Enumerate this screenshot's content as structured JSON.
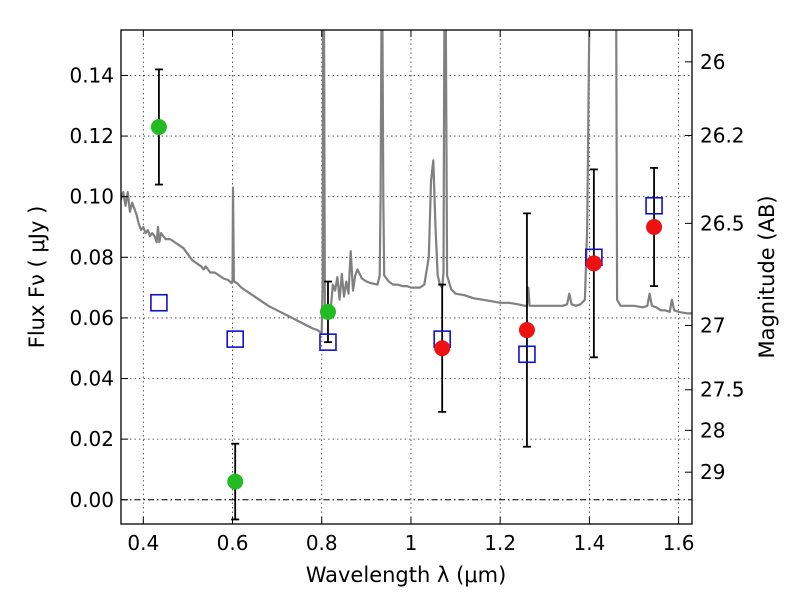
{
  "chart_data": {
    "type": "scatter",
    "xlabel": "Wavelength  λ (μm)",
    "ylabel": "Flux  Fν  ( μJy )",
    "ylabel_right": "Magnitude (AB)",
    "xlim": [
      0.35,
      1.63
    ],
    "ylim": [
      -0.008,
      0.155
    ],
    "grid": true,
    "x_ticks": [
      0.4,
      0.6,
      0.8,
      1.0,
      1.2,
      1.4,
      1.6
    ],
    "x_tick_labels": [
      "0.4",
      "0.6",
      "0.8",
      "1",
      "1.2",
      "1.4",
      "1.6"
    ],
    "y_ticks": [
      0.0,
      0.02,
      0.04,
      0.06,
      0.08,
      0.1,
      0.12,
      0.14
    ],
    "y_tick_labels": [
      "0.00",
      "0.02",
      "0.04",
      "0.06",
      "0.08",
      "0.10",
      "0.12",
      "0.14"
    ],
    "right_ticks": [
      {
        "label": "26",
        "flux": 0.1445
      },
      {
        "label": "26.2",
        "flux": 0.1202
      },
      {
        "label": "26.5",
        "flux": 0.0912
      },
      {
        "label": "27",
        "flux": 0.0575
      },
      {
        "label": "27.5",
        "flux": 0.0363
      },
      {
        "label": "28",
        "flux": 0.0229
      },
      {
        "label": "29",
        "flux": 0.0091
      }
    ],
    "colors": {
      "green": "#22bb22",
      "red": "#ee1111",
      "blue": "#1111cc",
      "model": "#808080",
      "errorbar": "#000000",
      "grid": "#333333"
    },
    "series": [
      {
        "marker": "circle",
        "color": "green",
        "points": [
          {
            "x": 0.435,
            "y": 0.123,
            "yerr": 0.019
          },
          {
            "x": 0.606,
            "y": 0.006,
            "yerr": 0.0125
          },
          {
            "x": 0.814,
            "y": 0.062,
            "yerr": 0.01
          }
        ]
      },
      {
        "marker": "circle",
        "color": "red",
        "points": [
          {
            "x": 1.07,
            "y": 0.05,
            "yerr": 0.021
          },
          {
            "x": 1.26,
            "y": 0.056,
            "yerr": 0.0385
          },
          {
            "x": 1.41,
            "y": 0.078,
            "yerr": 0.031
          },
          {
            "x": 1.545,
            "y": 0.09,
            "yerr": 0.0195
          }
        ]
      },
      {
        "marker": "open-square",
        "color": "blue",
        "points": [
          {
            "x": 0.435,
            "y": 0.065
          },
          {
            "x": 0.606,
            "y": 0.053
          },
          {
            "x": 0.814,
            "y": 0.052
          },
          {
            "x": 1.07,
            "y": 0.053
          },
          {
            "x": 1.26,
            "y": 0.048
          },
          {
            "x": 1.41,
            "y": 0.08
          },
          {
            "x": 1.545,
            "y": 0.097
          }
        ]
      }
    ],
    "model_spectrum": {
      "color": "model",
      "points": [
        [
          0.35,
          0.099
        ],
        [
          0.355,
          0.1015
        ],
        [
          0.36,
          0.097
        ],
        [
          0.365,
          0.1015
        ],
        [
          0.37,
          0.095
        ],
        [
          0.375,
          0.098
        ],
        [
          0.38,
          0.096
        ],
        [
          0.385,
          0.094
        ],
        [
          0.39,
          0.091
        ],
        [
          0.395,
          0.089
        ],
        [
          0.4,
          0.09
        ],
        [
          0.405,
          0.088
        ],
        [
          0.41,
          0.089
        ],
        [
          0.415,
          0.087
        ],
        [
          0.42,
          0.088
        ],
        [
          0.425,
          0.087
        ],
        [
          0.43,
          0.085
        ],
        [
          0.433,
          0.09
        ],
        [
          0.436,
          0.085
        ],
        [
          0.44,
          0.088
        ],
        [
          0.45,
          0.086
        ],
        [
          0.46,
          0.086
        ],
        [
          0.47,
          0.085
        ],
        [
          0.48,
          0.084
        ],
        [
          0.49,
          0.083
        ],
        [
          0.5,
          0.081
        ],
        [
          0.51,
          0.079
        ],
        [
          0.52,
          0.078
        ],
        [
          0.53,
          0.077
        ],
        [
          0.535,
          0.076
        ],
        [
          0.54,
          0.077
        ],
        [
          0.545,
          0.076
        ],
        [
          0.55,
          0.075
        ],
        [
          0.56,
          0.075
        ],
        [
          0.57,
          0.074
        ],
        [
          0.58,
          0.073
        ],
        [
          0.59,
          0.0725
        ],
        [
          0.598,
          0.0715
        ],
        [
          0.6,
          0.072
        ],
        [
          0.601,
          0.103
        ],
        [
          0.603,
          0.072
        ],
        [
          0.61,
          0.0715
        ],
        [
          0.62,
          0.07
        ],
        [
          0.64,
          0.068
        ],
        [
          0.66,
          0.066
        ],
        [
          0.68,
          0.064
        ],
        [
          0.7,
          0.0625
        ],
        [
          0.72,
          0.061
        ],
        [
          0.74,
          0.0595
        ],
        [
          0.76,
          0.058
        ],
        [
          0.78,
          0.0565
        ],
        [
          0.79,
          0.056
        ],
        [
          0.8,
          0.055
        ],
        [
          0.802,
          0.07
        ],
        [
          0.803,
          0.16
        ],
        [
          0.805,
          0.16
        ],
        [
          0.807,
          0.063
        ],
        [
          0.81,
          0.06
        ],
        [
          0.815,
          0.0625
        ],
        [
          0.82,
          0.063
        ],
        [
          0.825,
          0.071
        ],
        [
          0.83,
          0.069
        ],
        [
          0.835,
          0.0735
        ],
        [
          0.84,
          0.066
        ],
        [
          0.845,
          0.0745
        ],
        [
          0.85,
          0.067
        ],
        [
          0.855,
          0.072
        ],
        [
          0.86,
          0.068
        ],
        [
          0.865,
          0.082
        ],
        [
          0.87,
          0.069
        ],
        [
          0.875,
          0.074
        ],
        [
          0.88,
          0.076
        ],
        [
          0.885,
          0.0745
        ],
        [
          0.89,
          0.073
        ],
        [
          0.9,
          0.072
        ],
        [
          0.91,
          0.0715
        ],
        [
          0.925,
          0.071
        ],
        [
          0.93,
          0.074
        ],
        [
          0.932,
          0.1
        ],
        [
          0.934,
          0.16
        ],
        [
          0.936,
          0.16
        ],
        [
          0.938,
          0.1
        ],
        [
          0.94,
          0.074
        ],
        [
          0.95,
          0.072
        ],
        [
          0.96,
          0.071
        ],
        [
          0.97,
          0.071
        ],
        [
          0.98,
          0.0705
        ],
        [
          0.99,
          0.0705
        ],
        [
          1.0,
          0.07
        ],
        [
          1.01,
          0.07
        ],
        [
          1.02,
          0.07
        ],
        [
          1.03,
          0.071
        ],
        [
          1.04,
          0.08
        ],
        [
          1.045,
          0.105
        ],
        [
          1.05,
          0.112
        ],
        [
          1.055,
          0.09
        ],
        [
          1.06,
          0.074
        ],
        [
          1.065,
          0.071
        ],
        [
          1.07,
          0.07
        ],
        [
          1.073,
          0.075
        ],
        [
          1.075,
          0.16
        ],
        [
          1.078,
          0.16
        ],
        [
          1.081,
          0.074
        ],
        [
          1.09,
          0.0695
        ],
        [
          1.1,
          0.068
        ],
        [
          1.12,
          0.0675
        ],
        [
          1.14,
          0.0665
        ],
        [
          1.16,
          0.066
        ],
        [
          1.18,
          0.0655
        ],
        [
          1.2,
          0.065
        ],
        [
          1.22,
          0.065
        ],
        [
          1.24,
          0.0645
        ],
        [
          1.255,
          0.064
        ],
        [
          1.26,
          0.064
        ],
        [
          1.263,
          0.07
        ],
        [
          1.266,
          0.064
        ],
        [
          1.28,
          0.064
        ],
        [
          1.3,
          0.064
        ],
        [
          1.32,
          0.064
        ],
        [
          1.34,
          0.064
        ],
        [
          1.35,
          0.0645
        ],
        [
          1.355,
          0.068
        ],
        [
          1.36,
          0.0645
        ],
        [
          1.37,
          0.064
        ],
        [
          1.38,
          0.0645
        ],
        [
          1.39,
          0.066
        ],
        [
          1.395,
          0.09
        ],
        [
          1.4,
          0.16
        ],
        [
          1.41,
          0.16
        ],
        [
          1.42,
          0.16
        ],
        [
          1.44,
          0.16
        ],
        [
          1.45,
          0.16
        ],
        [
          1.46,
          0.16
        ],
        [
          1.462,
          0.066
        ],
        [
          1.47,
          0.064
        ],
        [
          1.48,
          0.064
        ],
        [
          1.5,
          0.064
        ],
        [
          1.52,
          0.0635
        ],
        [
          1.53,
          0.064
        ],
        [
          1.535,
          0.068
        ],
        [
          1.54,
          0.064
        ],
        [
          1.55,
          0.0635
        ],
        [
          1.56,
          0.0625
        ],
        [
          1.57,
          0.0625
        ],
        [
          1.58,
          0.062
        ],
        [
          1.585,
          0.066
        ],
        [
          1.59,
          0.0625
        ],
        [
          1.6,
          0.062
        ],
        [
          1.62,
          0.0615
        ],
        [
          1.63,
          0.0615
        ]
      ]
    }
  }
}
